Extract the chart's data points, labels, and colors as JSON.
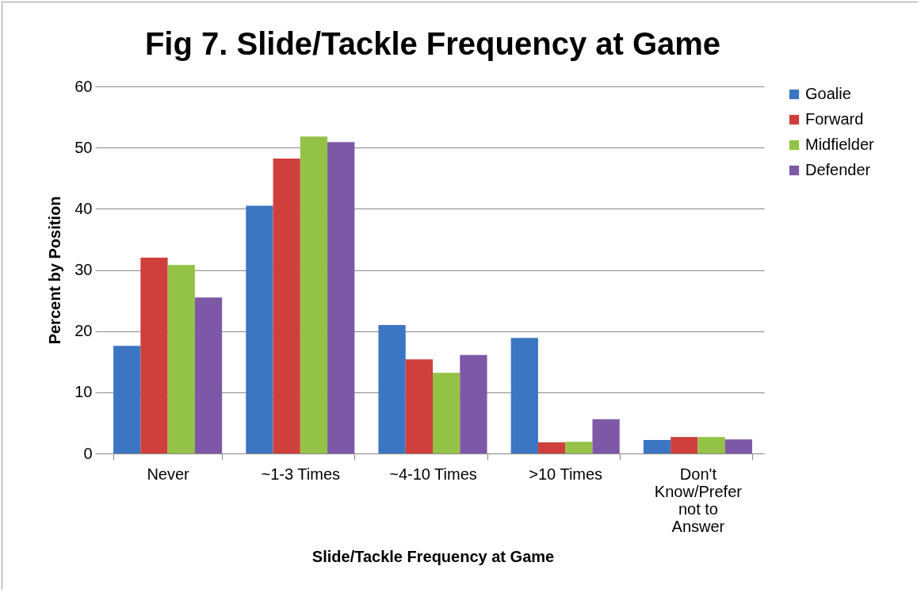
{
  "chart_data": {
    "type": "bar",
    "title": "Fig 7. Slide/Tackle Frequency at Game",
    "xlabel": "Slide/Tackle Frequency at Game",
    "ylabel": "Percent by Position",
    "categories": [
      "Never",
      "~1-3 Times",
      "~4-10 Times",
      ">10 Times",
      "Don't Know/Prefer not to Answer"
    ],
    "series": [
      {
        "name": "Goalie",
        "color": "#3c76c2",
        "values": [
          17.6,
          40.5,
          21.0,
          18.9,
          2.2
        ]
      },
      {
        "name": "Forward",
        "color": "#cf3f3b",
        "values": [
          32.0,
          48.2,
          15.4,
          1.8,
          2.7
        ]
      },
      {
        "name": "Midfielder",
        "color": "#93c246",
        "values": [
          30.8,
          51.8,
          13.2,
          1.9,
          2.7
        ]
      },
      {
        "name": "Defender",
        "color": "#7d58a6",
        "values": [
          25.5,
          50.9,
          16.1,
          5.6,
          2.3
        ]
      }
    ],
    "ylim": [
      0,
      60
    ],
    "yticks": [
      0,
      10,
      20,
      30,
      40,
      50,
      60
    ],
    "grid": "y",
    "legend": "right"
  }
}
